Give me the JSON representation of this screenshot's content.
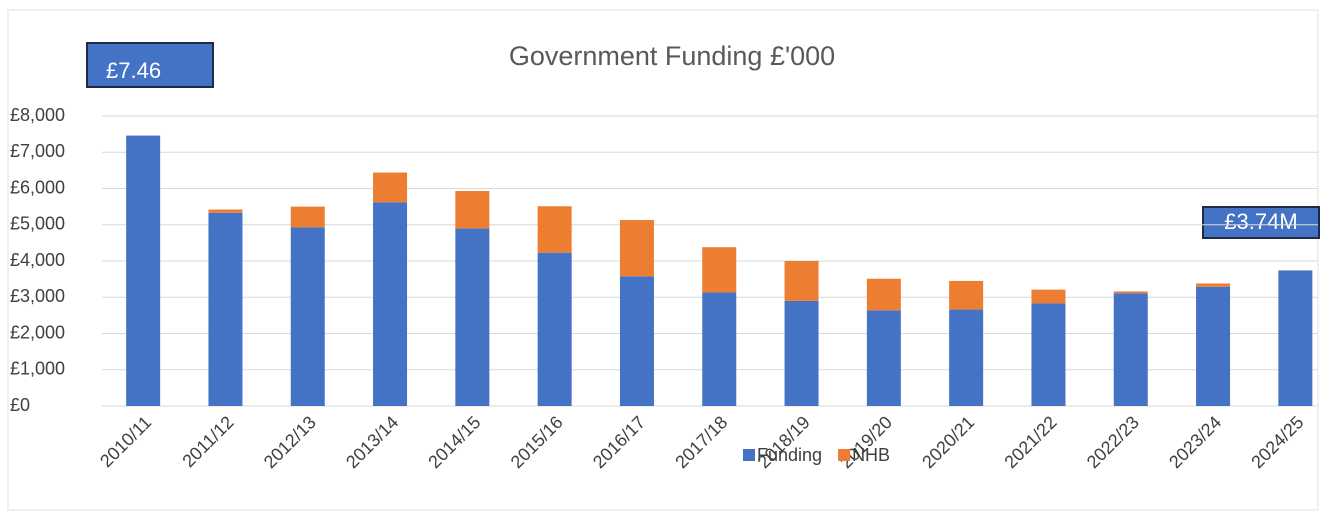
{
  "chart_data": {
    "type": "bar",
    "title": "Government Funding £'000",
    "stacked": true,
    "categories": [
      "2010/11",
      "2011/12",
      "2012/13",
      "2013/14",
      "2014/15",
      "2015/16",
      "2016/17",
      "2017/18",
      "2018/19",
      "2019/20",
      "2020/21",
      "2021/22",
      "2022/23",
      "2023/24",
      "2024/25"
    ],
    "series": [
      {
        "name": "Funding",
        "color": "#4472c4",
        "values": [
          7460,
          5330,
          4930,
          5620,
          4900,
          4230,
          3580,
          3130,
          2900,
          2640,
          2660,
          2830,
          3110,
          3290,
          3740
        ]
      },
      {
        "name": "NHB",
        "color": "#ed7d31",
        "values": [
          0,
          90,
          570,
          820,
          1030,
          1280,
          1550,
          1250,
          1100,
          870,
          790,
          380,
          50,
          90,
          0
        ]
      }
    ],
    "ylim": [
      0,
      8000
    ],
    "yticks": [
      {
        "value": 0,
        "label": "£0"
      },
      {
        "value": 1000,
        "label": "£1,000"
      },
      {
        "value": 2000,
        "label": "£2,000"
      },
      {
        "value": 3000,
        "label": "£3,000"
      },
      {
        "value": 4000,
        "label": "£4,000"
      },
      {
        "value": 5000,
        "label": "£5,000"
      },
      {
        "value": 6000,
        "label": "£6,000"
      },
      {
        "value": 7000,
        "label": "£7,000"
      },
      {
        "value": 8000,
        "label": "£8,000"
      }
    ],
    "grid": true,
    "legend": "bottom",
    "annotations": [
      "£7.46",
      "£3.74M"
    ]
  }
}
